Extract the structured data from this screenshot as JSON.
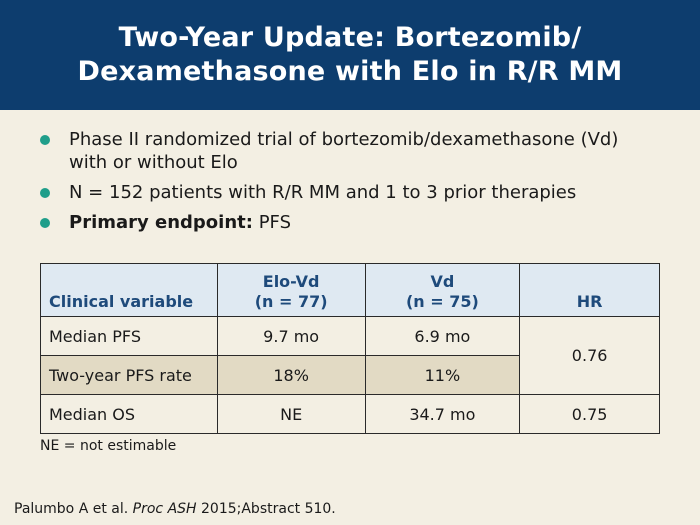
{
  "title": {
    "line1": "Two-Year Update: Bortezomib/",
    "line2": "Dexamethasone with Elo in R/R MM"
  },
  "bullets": [
    {
      "text": "Phase II randomized trial of bortezomib/dexamethasone (Vd) with or without Elo"
    },
    {
      "text": "N = 152 patients with R/R MM and 1 to 3 prior therapies"
    },
    {
      "bold": "Primary endpoint:",
      "text": " PFS"
    }
  ],
  "table": {
    "headers": {
      "variable": "Clinical variable",
      "elo_vd_1": "Elo-Vd",
      "elo_vd_2": "(n = 77)",
      "vd_1": "Vd",
      "vd_2": "(n = 75)",
      "hr": "HR"
    },
    "rows": [
      {
        "variable": "Median PFS",
        "elo_vd": "9.7 mo",
        "vd": "6.9 mo",
        "hr": "0.76"
      },
      {
        "variable": "Two-year PFS rate",
        "elo_vd": "18%",
        "vd": "11%"
      },
      {
        "variable": "Median OS",
        "elo_vd": "NE",
        "vd": "34.7 mo",
        "hr": "0.75"
      }
    ]
  },
  "footnote": "NE = not estimable",
  "citation": {
    "before": "Palumbo A et al. ",
    "journal": "Proc ASH",
    "after": " 2015;Abstract 510."
  },
  "colors": {
    "header_bg": "#0d3d6e",
    "background": "#f3efe3",
    "bullet": "#1f9e8a",
    "table_header_bg": "#dfe9f2",
    "table_header_text": "#1e4a7b",
    "shaded_row": "#e2dac4"
  }
}
